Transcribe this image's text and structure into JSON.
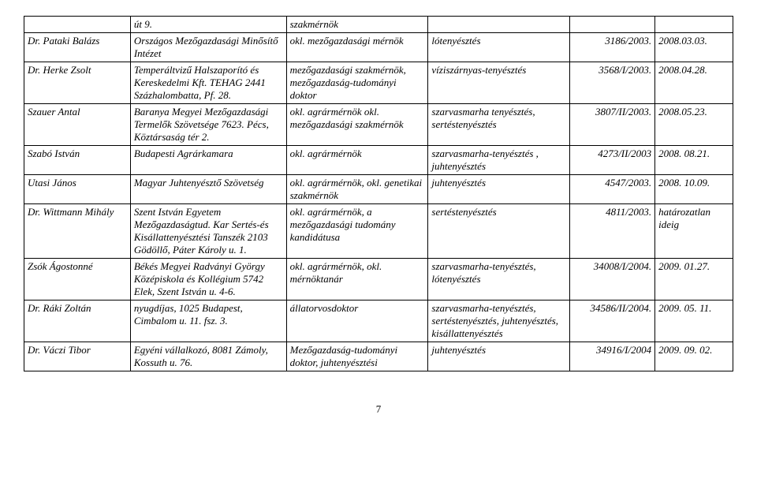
{
  "table": {
    "rows": [
      {
        "name": "",
        "org": "út 9.",
        "qual": "szakmérnök",
        "spec": "",
        "num": "",
        "date": ""
      },
      {
        "name": "Dr. Pataki Balázs",
        "org": "Országos Mezőgazdasági Minősítő Intézet",
        "qual": "okl. mezőgazdasági mérnök",
        "spec": "lótenyésztés",
        "num": "3186/2003.",
        "date": "2008.03.03."
      },
      {
        "name": "Dr. Herke Zsolt",
        "org": "Temperáltvizű Halszaporító és Kereskedelmi Kft. TEHAG 2441 Százhalombatta, Pf. 28.",
        "qual": "mezőgazdasági szakmérnök, mezőgazdaság-tudományi doktor",
        "spec": "víziszárnyas-tenyésztés",
        "num": "3568/I/2003.",
        "date": "2008.04.28."
      },
      {
        "name": "Szauer Antal",
        "org": "Baranya Megyei Mezőgazdasági Termelők Szövetsége 7623. Pécs, Köztársaság tér 2.",
        "qual": "okl. agrármérnök okl. mezőgazdasági szakmérnök",
        "spec": "szarvasmarha tenyésztés, sertéstenyésztés",
        "num": "3807/II/2003.",
        "date": "2008.05.23."
      },
      {
        "name": "Szabó István",
        "org": "Budapesti Agrárkamara",
        "qual": "okl. agrármérnök",
        "spec": "szarvasmarha-tenyésztés , juhtenyésztés",
        "num": "4273/II/2003",
        "date": "2008. 08.21."
      },
      {
        "name": "Utasi János",
        "org": "Magyar Juhtenyésztő Szövetség",
        "qual": "okl. agrármérnök, okl. genetikai szakmérnök",
        "spec": "juhtenyésztés",
        "num": "4547/2003.",
        "date": "2008. 10.09."
      },
      {
        "name": "Dr. Wittmann Mihály",
        "org": "Szent István Egyetem Mezőgazdaságtud. Kar Sertés-és Kisállattenyésztési Tanszék 2103 Gödöllő, Páter Károly u. 1.",
        "qual": "okl. agrármérnök, a mezőgazdasági tudomány kandidátusa",
        "spec": "sertéstenyésztés",
        "num": "4811/2003.",
        "date": "határozatlan ideig"
      },
      {
        "name": "Zsók Ágostonné",
        "org": "Békés Megyei Radványi György Középiskola és Kollégium 5742 Elek, Szent István u. 4-6.",
        "qual": "okl. agrármérnök, okl. mérnöktanár",
        "spec": "szarvasmarha-tenyésztés, lótenyésztés",
        "num": "34008/I/2004.",
        "date": "2009. 01.27."
      },
      {
        "name": "Dr. Ráki Zoltán",
        "org": "nyugdíjas, 1025 Budapest, Cimbalom u. 11. fsz. 3.",
        "qual": "állatorvosdoktor",
        "spec": "szarvasmarha-tenyésztés, sertéstenyésztés, juhtenyésztés, kisállattenyésztés",
        "num": "34586/II/2004.",
        "date": "2009. 05. 11."
      },
      {
        "name": "Dr. Váczi Tibor",
        "org": "Egyéni vállalkozó, 8081 Zámoly, Kossuth u. 76.",
        "qual": "Mezőgazdaság-tudományi doktor, juhtenyésztési",
        "spec": "juhtenyésztés",
        "num": "34916/I/2004",
        "date": "2009. 09. 02."
      }
    ]
  },
  "page_number": "7"
}
